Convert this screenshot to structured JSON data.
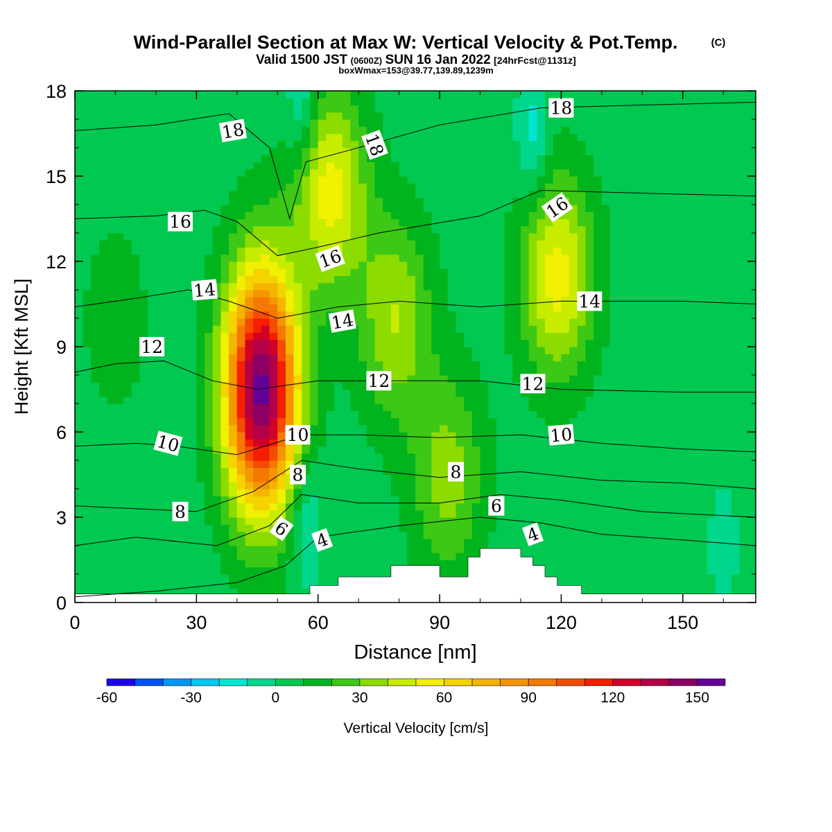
{
  "header": {
    "title": "Wind-Parallel Section at Max W: Vertical Velocity & Pot.Temp.",
    "copyright": "(C)",
    "subtitle_valid": "Valid 1500 JST",
    "subtitle_zulu": "(0600Z)",
    "subtitle_date": "SUN 16 Jan 2022",
    "subtitle_fcst": "[24hrFcst@1131z]",
    "box_note": "boxWmax=153@39.77,139.89,1239m"
  },
  "chart_data": {
    "type": "heatmap",
    "title": "Wind-Parallel Section at Max W: Vertical Velocity & Pot.Temp.",
    "xlabel": "Distance [nm]",
    "ylabel": "Height [Kft MSL]",
    "xlim": [
      0,
      168
    ],
    "ylim": [
      0,
      18
    ],
    "x_ticks": [
      0,
      30,
      60,
      90,
      120,
      150
    ],
    "y_ticks": [
      0,
      3,
      6,
      9,
      12,
      15,
      18
    ],
    "colorbar": {
      "label": "Vertical Velocity [cm/s]",
      "ticks": [
        -60,
        -30,
        0,
        30,
        60,
        90,
        120,
        150
      ],
      "levels": [
        -60,
        -50,
        -40,
        -30,
        -20,
        -10,
        0,
        10,
        20,
        30,
        40,
        50,
        60,
        70,
        80,
        90,
        100,
        110,
        120,
        130,
        140,
        150,
        160
      ],
      "colors": [
        "#1e00f0",
        "#0050ff",
        "#0096f5",
        "#00c8f0",
        "#00e6d2",
        "#00d78c",
        "#00c850",
        "#00b41e",
        "#3cc814",
        "#8cdc00",
        "#c8ec00",
        "#f0f000",
        "#f5d200",
        "#f5b400",
        "#f59600",
        "#f57800",
        "#f54b00",
        "#f51e00",
        "#d20028",
        "#b40046",
        "#8c0064",
        "#640096"
      ]
    },
    "updraft_max_cm_s": 153,
    "updraft_max_location": {
      "distance_nm": 47,
      "height_kft": 7.5
    },
    "w_features": [
      {
        "x": 46,
        "y": 7.5,
        "w": 153
      },
      {
        "x": 63,
        "y": 14.5,
        "w": 55
      },
      {
        "x": 79,
        "y": 10,
        "w": 40
      },
      {
        "x": 119,
        "y": 11.5,
        "w": 55
      },
      {
        "x": 92,
        "y": 4.5,
        "w": 35
      },
      {
        "x": 57,
        "y": 3,
        "w": -15
      },
      {
        "x": 113,
        "y": 16.5,
        "w": -15
      },
      {
        "x": 56,
        "y": 17.5,
        "w": -15
      },
      {
        "x": 10,
        "y": 10,
        "w": 15
      },
      {
        "x": 160,
        "y": 2,
        "w": -5
      }
    ],
    "theta_contours": [
      {
        "label": "4",
        "x": [
          0,
          20,
          40,
          52,
          60,
          80,
          100,
          115,
          130,
          150,
          168
        ],
        "y": [
          0.2,
          0.4,
          0.7,
          1.3,
          2.3,
          2.7,
          3.0,
          2.8,
          2.4,
          2.2,
          2.0
        ]
      },
      {
        "label": "6",
        "x": [
          0,
          15,
          35,
          48,
          56,
          70,
          90,
          105,
          120,
          140,
          168
        ],
        "y": [
          2.0,
          2.3,
          2.0,
          2.7,
          3.8,
          3.5,
          3.5,
          3.8,
          3.6,
          3.2,
          3.0
        ]
      },
      {
        "label": "8",
        "x": [
          0,
          15,
          30,
          44,
          56,
          70,
          90,
          110,
          130,
          150,
          168
        ],
        "y": [
          3.4,
          3.3,
          3.2,
          3.9,
          5.0,
          4.7,
          4.4,
          4.6,
          4.3,
          4.2,
          4.0
        ]
      },
      {
        "label": "10",
        "x": [
          0,
          15,
          25,
          40,
          56,
          70,
          90,
          110,
          130,
          150,
          168
        ],
        "y": [
          5.5,
          5.6,
          5.5,
          5.2,
          5.9,
          5.9,
          5.8,
          5.9,
          5.6,
          5.4,
          5.3
        ]
      },
      {
        "label": "12",
        "x": [
          0,
          10,
          22,
          34,
          45,
          60,
          80,
          100,
          120,
          150,
          168
        ],
        "y": [
          8.1,
          8.4,
          8.5,
          7.8,
          7.5,
          7.8,
          7.8,
          7.8,
          7.5,
          7.4,
          7.4
        ]
      },
      {
        "label": "14",
        "x": [
          0,
          15,
          28,
          38,
          50,
          65,
          80,
          100,
          120,
          150,
          168
        ],
        "y": [
          10.4,
          10.7,
          11.0,
          10.6,
          10.0,
          10.4,
          10.6,
          10.4,
          10.6,
          10.6,
          10.5
        ]
      },
      {
        "label": "16",
        "x": [
          0,
          20,
          32,
          40,
          50,
          60,
          75,
          100,
          115,
          140,
          168
        ],
        "y": [
          13.5,
          13.6,
          13.8,
          13.4,
          12.2,
          12.5,
          13.0,
          13.6,
          14.5,
          14.4,
          14.3
        ]
      },
      {
        "label": "18",
        "x": [
          0,
          20,
          38,
          48,
          53,
          57,
          70,
          90,
          115,
          140,
          168
        ],
        "y": [
          16.6,
          16.8,
          17.2,
          16.0,
          13.5,
          15.5,
          16.0,
          16.8,
          17.4,
          17.5,
          17.6
        ]
      }
    ],
    "theta_labels": [
      {
        "text": "4",
        "x": 61,
        "y": 2.2,
        "angle": -20
      },
      {
        "text": "4",
        "x": 113,
        "y": 2.4,
        "angle": -20
      },
      {
        "text": "6",
        "x": 51,
        "y": 2.6,
        "angle": 35
      },
      {
        "text": "6",
        "x": 104,
        "y": 3.4,
        "angle": 0
      },
      {
        "text": "8",
        "x": 26,
        "y": 3.2,
        "angle": 0
      },
      {
        "text": "8",
        "x": 55,
        "y": 4.5,
        "angle": 0
      },
      {
        "text": "8",
        "x": 94,
        "y": 4.6,
        "angle": 0
      },
      {
        "text": "10",
        "x": 23,
        "y": 5.6,
        "angle": 15
      },
      {
        "text": "10",
        "x": 55,
        "y": 5.9,
        "angle": 0
      },
      {
        "text": "10",
        "x": 120,
        "y": 5.9,
        "angle": -5
      },
      {
        "text": "12",
        "x": 19,
        "y": 9.0,
        "angle": 0
      },
      {
        "text": "12",
        "x": 75,
        "y": 7.8,
        "angle": 0
      },
      {
        "text": "12",
        "x": 113,
        "y": 7.7,
        "angle": 0
      },
      {
        "text": "14",
        "x": 32,
        "y": 11.0,
        "angle": -5
      },
      {
        "text": "14",
        "x": 66,
        "y": 9.9,
        "angle": -10
      },
      {
        "text": "14",
        "x": 127,
        "y": 10.6,
        "angle": 0
      },
      {
        "text": "16",
        "x": 26,
        "y": 13.4,
        "angle": 0
      },
      {
        "text": "16",
        "x": 63,
        "y": 12.1,
        "angle": -20
      },
      {
        "text": "16",
        "x": 119,
        "y": 13.9,
        "angle": -35
      },
      {
        "text": "18",
        "x": 39,
        "y": 16.6,
        "angle": -10
      },
      {
        "text": "18",
        "x": 74,
        "y": 16.1,
        "angle": 70
      },
      {
        "text": "18",
        "x": 120,
        "y": 17.4,
        "angle": 0
      }
    ],
    "terrain": {
      "x": [
        0,
        58,
        58,
        62,
        62,
        65,
        65,
        78,
        78,
        90,
        90,
        97,
        97,
        100,
        100,
        105,
        105,
        110,
        110,
        113,
        113,
        116,
        116,
        119,
        119,
        125,
        125,
        168
      ],
      "y": [
        0.3,
        0.3,
        0.6,
        0.6,
        0.6,
        0.6,
        0.9,
        0.9,
        1.3,
        1.3,
        0.9,
        0.9,
        1.6,
        1.6,
        1.9,
        1.9,
        1.9,
        1.9,
        1.6,
        1.6,
        1.3,
        1.3,
        0.9,
        0.9,
        0.6,
        0.6,
        0.3,
        0.3
      ]
    }
  }
}
